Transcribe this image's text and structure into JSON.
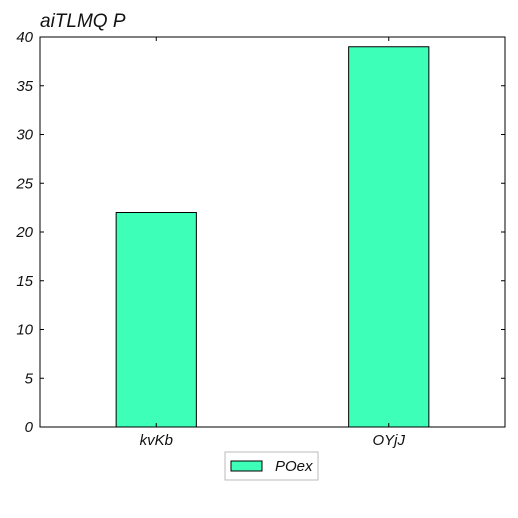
{
  "chart_data": {
    "type": "bar",
    "title": "aiTLMQ P",
    "xlabel": "",
    "ylabel": "",
    "categories": [
      "kvKb",
      "OYjJ"
    ],
    "series": [
      {
        "name": "POex",
        "values": [
          22,
          39
        ]
      }
    ],
    "ylim": [
      0,
      40
    ],
    "yticks": [
      0,
      5,
      10,
      15,
      20,
      25,
      30,
      35,
      40
    ],
    "grid": false,
    "legend_position": "bottom-center",
    "colors": {
      "bar_fill": "#3dffb8",
      "bar_edge": "#000000",
      "axis": "#000000"
    }
  }
}
